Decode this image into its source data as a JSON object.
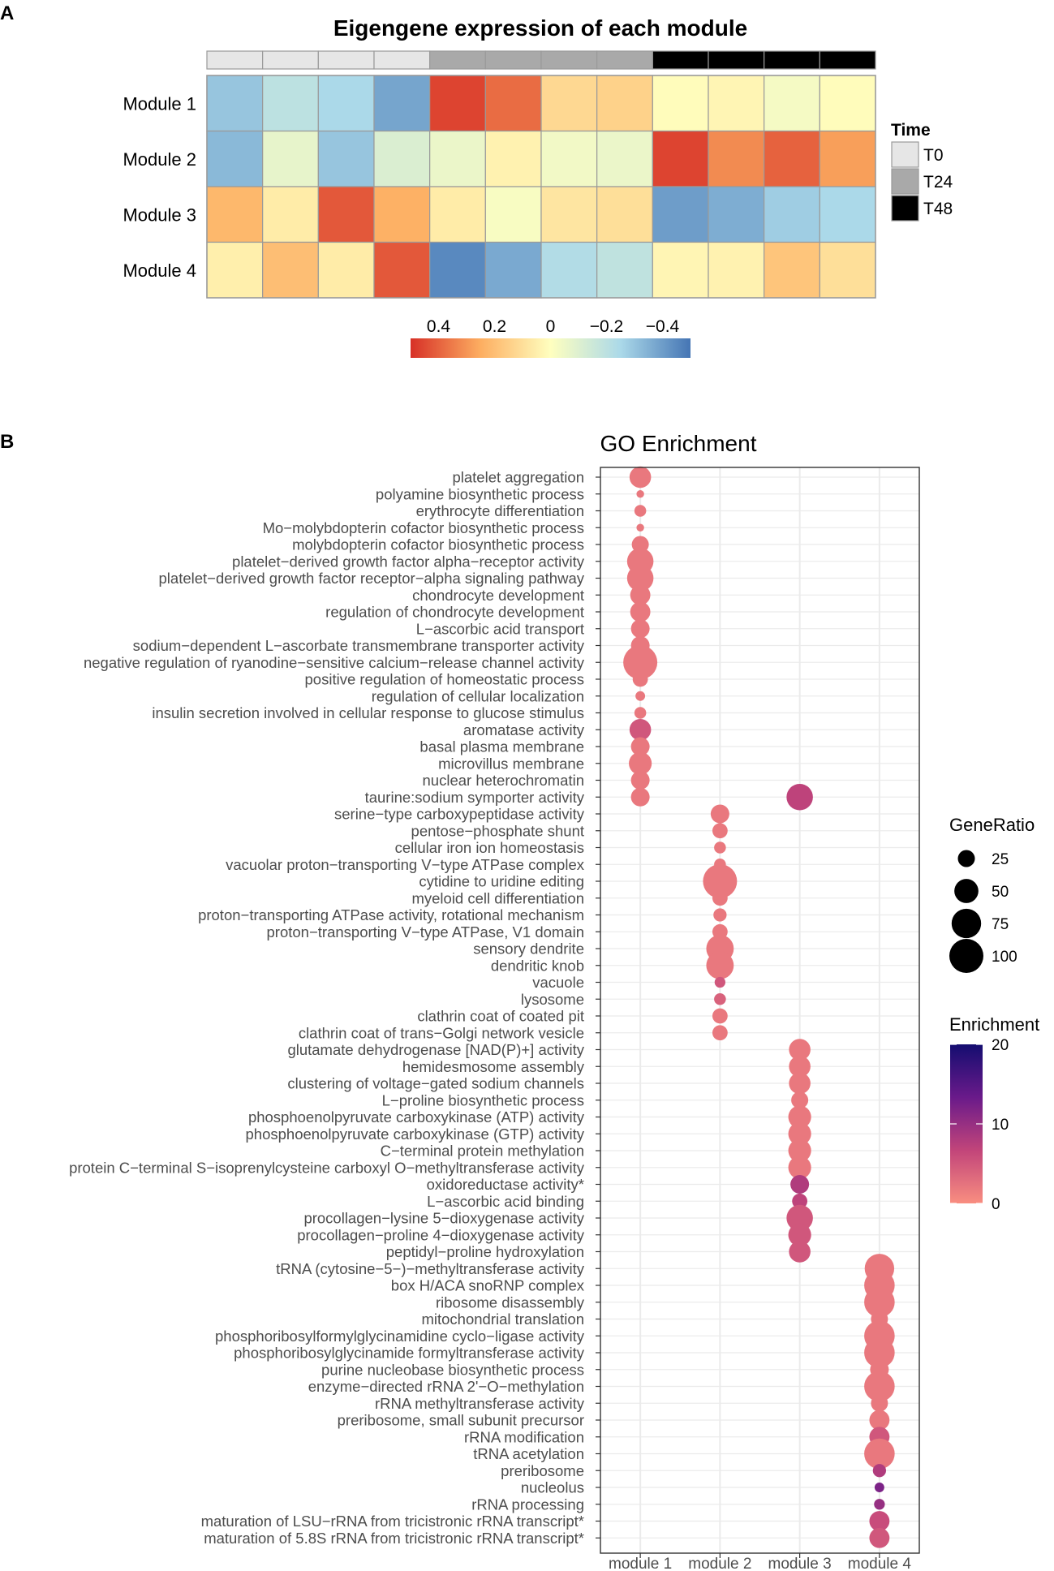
{
  "panels": {
    "a_label": "A",
    "b_label": "B"
  },
  "chart_data": [
    {
      "type": "heatmap",
      "title": "Eigengene expression of each module",
      "rows": [
        "Module 1",
        "Module 2",
        "Module 3",
        "Module 4"
      ],
      "time_annotation": {
        "title": "Time",
        "columns": [
          "T0",
          "T0",
          "T0",
          "T0",
          "T24",
          "T24",
          "T24",
          "T24",
          "T48",
          "T48",
          "T48",
          "T48"
        ],
        "legend": [
          {
            "label": "T0",
            "color": "#e6e6e6"
          },
          {
            "label": "T24",
            "color": "#a9a9a9"
          },
          {
            "label": "T48",
            "color": "#000000"
          }
        ]
      },
      "values": [
        [
          -0.3,
          -0.2,
          -0.25,
          -0.38,
          0.46,
          0.38,
          0.12,
          0.14,
          0.01,
          0.03,
          -0.03,
          0.01
        ],
        [
          -0.33,
          -0.07,
          -0.3,
          -0.11,
          -0.06,
          0.04,
          -0.04,
          -0.06,
          0.46,
          0.32,
          0.4,
          0.28
        ],
        [
          0.22,
          0.06,
          0.42,
          0.24,
          0.06,
          -0.02,
          0.08,
          0.1,
          -0.4,
          -0.36,
          -0.28,
          -0.25
        ],
        [
          0.05,
          0.2,
          0.06,
          0.42,
          -0.45,
          -0.37,
          -0.23,
          -0.19,
          0.03,
          0.04,
          0.18,
          0.1
        ]
      ],
      "colorbar": {
        "ticks": [
          "0.4",
          "0.2",
          "0",
          "−0.2",
          "−0.4"
        ],
        "tick_values": [
          0.4,
          0.2,
          0,
          -0.2,
          -0.4
        ],
        "range": [
          0.5,
          -0.5
        ],
        "colors": [
          "#d73027",
          "#fdae61",
          "#ffffbf",
          "#abd9e9",
          "#4575b4"
        ]
      }
    },
    {
      "type": "scatter",
      "title": "GO Enrichment",
      "x_categories": [
        "module 1",
        "module 2",
        "module 3",
        "module 4"
      ],
      "terms": [
        {
          "term": "platelet aggregation",
          "module": "module 1",
          "gene_ratio": 40,
          "enrichment": 2
        },
        {
          "term": "polyamine biosynthetic process",
          "module": "module 1",
          "gene_ratio": 5,
          "enrichment": 2
        },
        {
          "term": "erythrocyte differentiation",
          "module": "module 1",
          "gene_ratio": 12,
          "enrichment": 2
        },
        {
          "term": "Mo−molybdopterin cofactor biosynthetic process",
          "module": "module 1",
          "gene_ratio": 5,
          "enrichment": 2
        },
        {
          "term": "molybdopterin cofactor biosynthetic process",
          "module": "module 1",
          "gene_ratio": 25,
          "enrichment": 2
        },
        {
          "term": "platelet−derived growth factor alpha−receptor activity",
          "module": "module 1",
          "gene_ratio": 60,
          "enrichment": 2
        },
        {
          "term": "platelet−derived growth factor receptor−alpha signaling pathway",
          "module": "module 1",
          "gene_ratio": 60,
          "enrichment": 2
        },
        {
          "term": "chondrocyte development",
          "module": "module 1",
          "gene_ratio": 35,
          "enrichment": 2
        },
        {
          "term": "regulation of chondrocyte development",
          "module": "module 1",
          "gene_ratio": 35,
          "enrichment": 2
        },
        {
          "term": "L−ascorbic acid transport",
          "module": "module 1",
          "gene_ratio": 30,
          "enrichment": 2
        },
        {
          "term": "sodium−dependent L−ascorbate transmembrane transporter activity",
          "module": "module 1",
          "gene_ratio": 30,
          "enrichment": 2
        },
        {
          "term": "negative regulation of ryanodine−sensitive calcium−release channel activity",
          "module": "module 1",
          "gene_ratio": 100,
          "enrichment": 2
        },
        {
          "term": "positive regulation of homeostatic process",
          "module": "module 1",
          "gene_ratio": 20,
          "enrichment": 2
        },
        {
          "term": "regulation of cellular localization",
          "module": "module 1",
          "gene_ratio": 8,
          "enrichment": 2
        },
        {
          "term": "insulin secretion involved in cellular response to glucose stimulus",
          "module": "module 1",
          "gene_ratio": 12,
          "enrichment": 2
        },
        {
          "term": "aromatase activity",
          "module": "module 1",
          "gene_ratio": 40,
          "enrichment": 5
        },
        {
          "term": "basal plasma membrane",
          "module": "module 1",
          "gene_ratio": 30,
          "enrichment": 2
        },
        {
          "term": "microvillus membrane",
          "module": "module 1",
          "gene_ratio": 45,
          "enrichment": 2
        },
        {
          "term": "nuclear heterochromatin",
          "module": "module 1",
          "gene_ratio": 30,
          "enrichment": 2
        },
        {
          "term": "taurine:sodium symporter activity",
          "module": "module 1",
          "gene_ratio": 30,
          "enrichment": 2
        },
        {
          "term": "taurine:sodium symporter activity",
          "module": "module 3",
          "gene_ratio": 60,
          "enrichment": 7
        },
        {
          "term": "serine−type carboxypeptidase activity",
          "module": "module 2",
          "gene_ratio": 30,
          "enrichment": 2
        },
        {
          "term": "pentose−phosphate shunt",
          "module": "module 2",
          "gene_ratio": 20,
          "enrichment": 2
        },
        {
          "term": "cellular iron ion homeostasis",
          "module": "module 2",
          "gene_ratio": 12,
          "enrichment": 2
        },
        {
          "term": "vacuolar proton−transporting V−type ATPase complex",
          "module": "module 2",
          "gene_ratio": 12,
          "enrichment": 2
        },
        {
          "term": "cytidine to uridine editing",
          "module": "module 2",
          "gene_ratio": 100,
          "enrichment": 2
        },
        {
          "term": "myeloid cell differentiation",
          "module": "module 2",
          "gene_ratio": 20,
          "enrichment": 2
        },
        {
          "term": "proton−transporting ATPase activity, rotational mechanism",
          "module": "module 2",
          "gene_ratio": 15,
          "enrichment": 2
        },
        {
          "term": "proton−transporting V−type ATPase, V1 domain",
          "module": "module 2",
          "gene_ratio": 20,
          "enrichment": 2
        },
        {
          "term": "sensory dendrite",
          "module": "module 2",
          "gene_ratio": 65,
          "enrichment": 2
        },
        {
          "term": "dendritic knob",
          "module": "module 2",
          "gene_ratio": 65,
          "enrichment": 2
        },
        {
          "term": "vacuole",
          "module": "module 2",
          "gene_ratio": 10,
          "enrichment": 5
        },
        {
          "term": "lysosome",
          "module": "module 2",
          "gene_ratio": 12,
          "enrichment": 4
        },
        {
          "term": "clathrin coat of coated pit",
          "module": "module 2",
          "gene_ratio": 20,
          "enrichment": 2
        },
        {
          "term": "clathrin coat of trans−Golgi network vesicle",
          "module": "module 2",
          "gene_ratio": 20,
          "enrichment": 2
        },
        {
          "term": "glutamate dehydrogenase [NAD(P)+] activity",
          "module": "module 3",
          "gene_ratio": 40,
          "enrichment": 2
        },
        {
          "term": "hemidesmosome assembly",
          "module": "module 3",
          "gene_ratio": 40,
          "enrichment": 2
        },
        {
          "term": "clustering of voltage−gated sodium channels",
          "module": "module 3",
          "gene_ratio": 40,
          "enrichment": 2
        },
        {
          "term": "L−proline biosynthetic process",
          "module": "module 3",
          "gene_ratio": 25,
          "enrichment": 2
        },
        {
          "term": "phosphoenolpyruvate carboxykinase (ATP) activity",
          "module": "module 3",
          "gene_ratio": 45,
          "enrichment": 2
        },
        {
          "term": "phosphoenolpyruvate carboxykinase (GTP) activity",
          "module": "module 3",
          "gene_ratio": 45,
          "enrichment": 2
        },
        {
          "term": "C−terminal protein methylation",
          "module": "module 3",
          "gene_ratio": 45,
          "enrichment": 2
        },
        {
          "term": "protein C−terminal S−isoprenylcysteine carboxyl O−methyltransferase activity",
          "module": "module 3",
          "gene_ratio": 45,
          "enrichment": 2
        },
        {
          "term": "oxidoreductase activity*",
          "module": "module 3",
          "gene_ratio": 30,
          "enrichment": 8
        },
        {
          "term": "L−ascorbic acid binding",
          "module": "module 3",
          "gene_ratio": 20,
          "enrichment": 7
        },
        {
          "term": "procollagen−lysine 5−dioxygenase activity",
          "module": "module 3",
          "gene_ratio": 60,
          "enrichment": 5
        },
        {
          "term": "procollagen−proline 4−dioxygenase activity",
          "module": "module 3",
          "gene_ratio": 45,
          "enrichment": 5
        },
        {
          "term": "peptidyl−proline hydroxylation",
          "module": "module 3",
          "gene_ratio": 40,
          "enrichment": 5
        },
        {
          "term": "tRNA (cytosine−5−)−methyltransferase activity",
          "module": "module 4",
          "gene_ratio": 75,
          "enrichment": 2
        },
        {
          "term": "box H/ACA snoRNP complex",
          "module": "module 4",
          "gene_ratio": 80,
          "enrichment": 2
        },
        {
          "term": "ribosome disassembly",
          "module": "module 4",
          "gene_ratio": 80,
          "enrichment": 2
        },
        {
          "term": "mitochondrial translation",
          "module": "module 4",
          "gene_ratio": 25,
          "enrichment": 2
        },
        {
          "term": "phosphoribosylformylglycinamidine cyclo−ligase activity",
          "module": "module 4",
          "gene_ratio": 80,
          "enrichment": 2
        },
        {
          "term": "phosphoribosylglycinamide formyltransferase activity",
          "module": "module 4",
          "gene_ratio": 80,
          "enrichment": 2
        },
        {
          "term": "purine nucleobase biosynthetic process",
          "module": "module 4",
          "gene_ratio": 30,
          "enrichment": 2
        },
        {
          "term": "enzyme−directed rRNA 2'−O−methylation",
          "module": "module 4",
          "gene_ratio": 80,
          "enrichment": 2
        },
        {
          "term": "rRNA methyltransferase activity",
          "module": "module 4",
          "gene_ratio": 25,
          "enrichment": 2
        },
        {
          "term": "preribosome, small subunit precursor",
          "module": "module 4",
          "gene_ratio": 35,
          "enrichment": 2
        },
        {
          "term": "rRNA modification",
          "module": "module 4",
          "gene_ratio": 35,
          "enrichment": 5
        },
        {
          "term": "tRNA acetylation",
          "module": "module 4",
          "gene_ratio": 80,
          "enrichment": 2
        },
        {
          "term": "preribosome",
          "module": "module 4",
          "gene_ratio": 15,
          "enrichment": 8
        },
        {
          "term": "nucleolus",
          "module": "module 4",
          "gene_ratio": 8,
          "enrichment": 12
        },
        {
          "term": "rRNA processing",
          "module": "module 4",
          "gene_ratio": 10,
          "enrichment": 10
        },
        {
          "term": "maturation of LSU−rRNA from tricistronic rRNA transcript*",
          "module": "module 4",
          "gene_ratio": 35,
          "enrichment": 6
        },
        {
          "term": "maturation of 5.8S rRNA from tricistronic rRNA transcript*",
          "module": "module 4",
          "gene_ratio": 35,
          "enrichment": 5
        }
      ],
      "size_legend": {
        "title": "GeneRatio",
        "values": [
          25,
          50,
          75,
          100
        ]
      },
      "color_legend": {
        "title": "Enrichment",
        "ticks": [
          20,
          10,
          0
        ],
        "range": [
          0,
          20
        ],
        "low_color": "#f98e80",
        "high_color": "#140d70"
      }
    }
  ]
}
